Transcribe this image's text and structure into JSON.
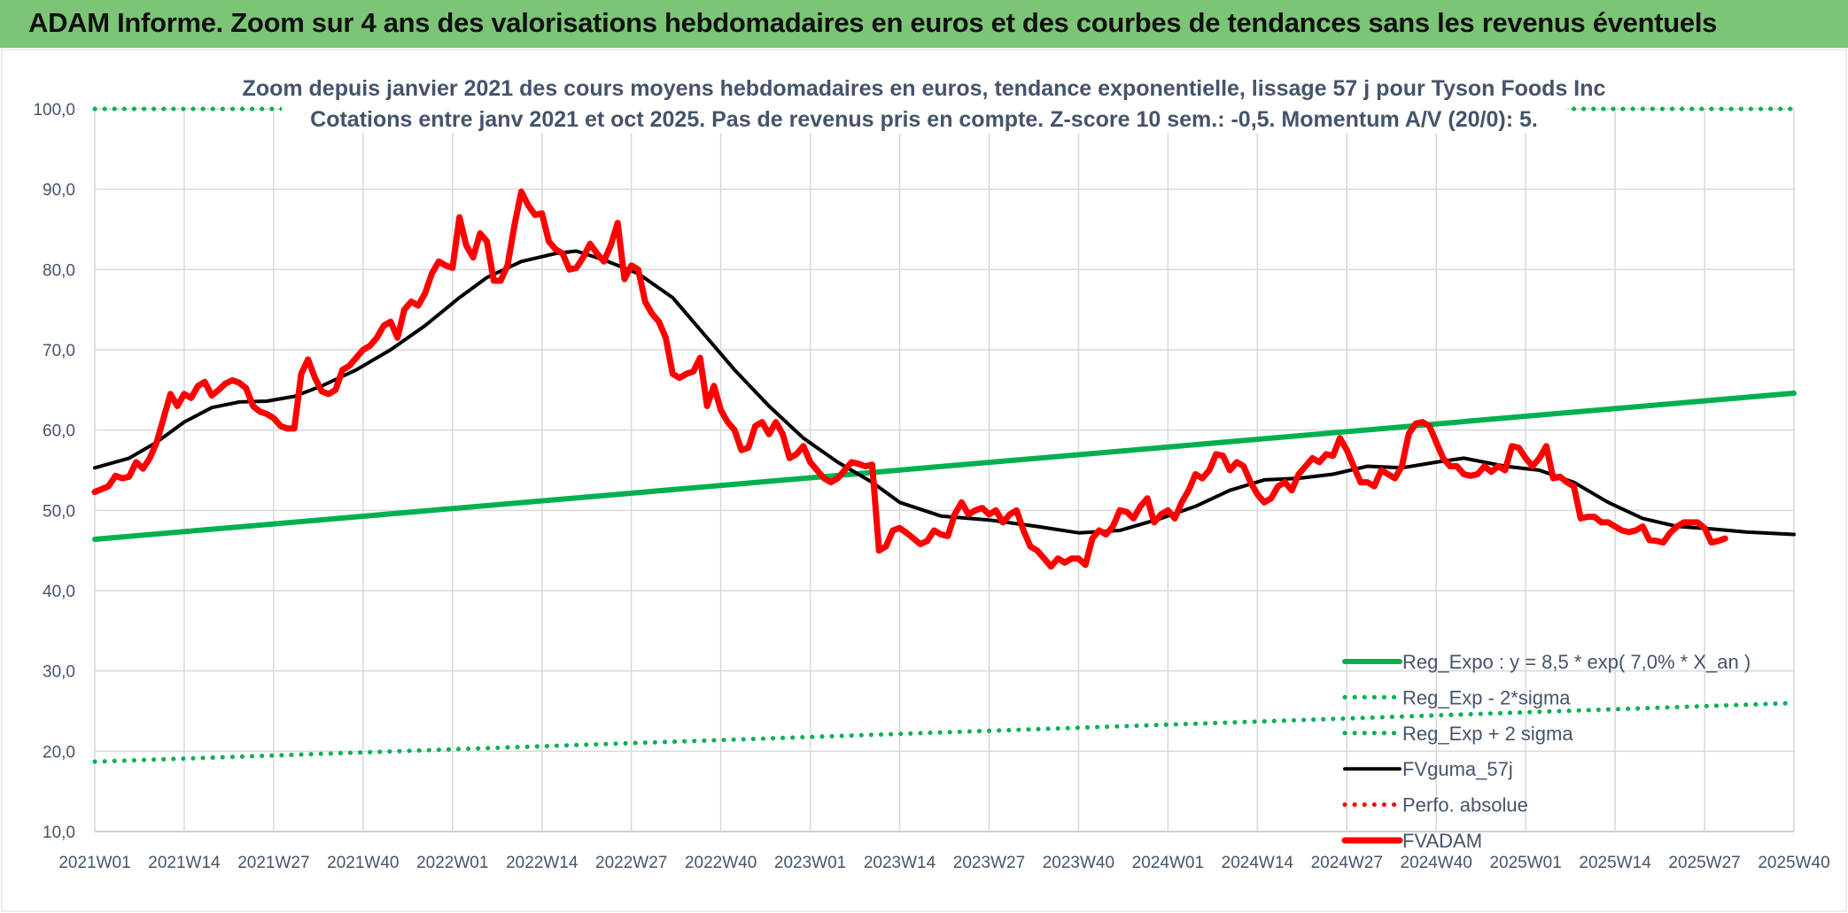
{
  "banner": {
    "title": "ADAM Informe. Zoom sur 4 ans des valorisations hebdomadaires en euros et des courbes de tendances sans les revenus éventuels"
  },
  "chart_data": {
    "type": "line",
    "title": "Zoom depuis janvier 2021 des cours moyens hebdomadaires en euros, tendance exponentielle, lissage 57 j pour Tyson Foods Inc",
    "subtitle": "Cotations entre janv 2021 et oct 2025. Pas de revenus pris en compte. Z-score 10 sem.: -0,5. Momentum A/V (20/0): 5.",
    "xlabel": "",
    "ylabel": "",
    "ylim": [
      10,
      100
    ],
    "yticks": [
      "10,0",
      "20,0",
      "30,0",
      "40,0",
      "50,0",
      "60,0",
      "70,0",
      "80,0",
      "90,0",
      "100,0"
    ],
    "xticks": [
      "2021W01",
      "2021W14",
      "2021W27",
      "2021W40",
      "2022W01",
      "2022W14",
      "2022W27",
      "2022W40",
      "2023W01",
      "2023W14",
      "2023W27",
      "2023W40",
      "2024W01",
      "2024W14",
      "2024W27",
      "2024W40",
      "2025W01",
      "2025W14",
      "2025W27",
      "2025W40"
    ],
    "grid": true,
    "legend_position": "bottom-right",
    "colors": {
      "green": "#00b050",
      "black": "#000000",
      "red": "#ff0000",
      "axis_text": "#44546a"
    },
    "series": [
      {
        "name": "Reg_Expo : y = 8,5 * exp( 7,0% *  X_an )",
        "style": "solid",
        "color": "#00b050",
        "key": "reg",
        "values": [
          [
            0,
            46.4
          ],
          [
            247,
            64.6
          ]
        ]
      },
      {
        "name": "Reg_Exp - 2*sigma",
        "style": "dotted",
        "color": "#00b050",
        "key": "low",
        "values": [
          [
            0,
            18.7
          ],
          [
            247,
            26.0
          ]
        ]
      },
      {
        "name": "Reg_Exp + 2 sigma",
        "style": "dotted",
        "color": "#00b050",
        "key": "high",
        "values": [
          [
            0,
            100.0
          ],
          [
            28,
            100.0
          ],
          [
            215,
            100.0
          ],
          [
            247,
            100.0
          ]
        ]
      },
      {
        "name": "FVguma_57j",
        "style": "solid",
        "color": "#000000",
        "key": "smooth",
        "values": [
          [
            0,
            55.3
          ],
          [
            5,
            56.5
          ],
          [
            9,
            58.5
          ],
          [
            13,
            61.0
          ],
          [
            17,
            62.8
          ],
          [
            21,
            63.5
          ],
          [
            25,
            63.6
          ],
          [
            29,
            64.2
          ],
          [
            33,
            65.5
          ],
          [
            38,
            67.5
          ],
          [
            43,
            70.0
          ],
          [
            48,
            73.0
          ],
          [
            53,
            76.5
          ],
          [
            57,
            79.0
          ],
          [
            62,
            81.0
          ],
          [
            67,
            82.0
          ],
          [
            70,
            82.3
          ],
          [
            74,
            81.2
          ],
          [
            79,
            79.5
          ],
          [
            84,
            76.5
          ],
          [
            88,
            72.5
          ],
          [
            93,
            67.5
          ],
          [
            98,
            63.0
          ],
          [
            103,
            59.0
          ],
          [
            108,
            56.0
          ],
          [
            113,
            53.5
          ],
          [
            117,
            51.0
          ],
          [
            123,
            49.3
          ],
          [
            130,
            48.8
          ],
          [
            137,
            48.0
          ],
          [
            143,
            47.2
          ],
          [
            149,
            47.5
          ],
          [
            155,
            49.0
          ],
          [
            160,
            50.5
          ],
          [
            165,
            52.5
          ],
          [
            170,
            53.8
          ],
          [
            175,
            54.0
          ],
          [
            180,
            54.5
          ],
          [
            185,
            55.5
          ],
          [
            190,
            55.3
          ],
          [
            195,
            56.0
          ],
          [
            199,
            56.5
          ],
          [
            205,
            55.5
          ],
          [
            210,
            55.0
          ],
          [
            215,
            53.5
          ],
          [
            220,
            51.0
          ],
          [
            225,
            49.0
          ],
          [
            230,
            48.0
          ],
          [
            235,
            47.7
          ],
          [
            240,
            47.3
          ],
          [
            247,
            47.0
          ]
        ]
      },
      {
        "name": "Perfo. absolue",
        "style": "dotted",
        "color": "#ff0000",
        "key": "perfo",
        "values": []
      },
      {
        "name": "FVADAM",
        "style": "solid",
        "color": "#ff0000",
        "key": "fvadam",
        "values": [
          [
            0,
            52.3
          ],
          [
            2,
            53.0
          ],
          [
            3,
            54.3
          ],
          [
            4,
            54.0
          ],
          [
            5,
            54.2
          ],
          [
            6,
            56.0
          ],
          [
            7,
            55.2
          ],
          [
            8,
            56.5
          ],
          [
            9,
            58.5
          ],
          [
            10,
            61.5
          ],
          [
            11,
            64.5
          ],
          [
            12,
            63.0
          ],
          [
            13,
            64.5
          ],
          [
            14,
            64.0
          ],
          [
            15,
            65.5
          ],
          [
            16,
            66.0
          ],
          [
            17,
            64.3
          ],
          [
            18,
            65.0
          ],
          [
            19,
            65.8
          ],
          [
            20,
            66.2
          ],
          [
            21,
            65.9
          ],
          [
            22,
            65.2
          ],
          [
            23,
            63.0
          ],
          [
            24,
            62.3
          ],
          [
            25,
            62.0
          ],
          [
            26,
            61.5
          ],
          [
            27,
            60.5
          ],
          [
            28,
            60.2
          ],
          [
            29,
            60.2
          ],
          [
            30,
            67.0
          ],
          [
            31,
            68.8
          ],
          [
            32,
            66.5
          ],
          [
            33,
            64.8
          ],
          [
            34,
            64.5
          ],
          [
            35,
            65.0
          ],
          [
            36,
            67.5
          ],
          [
            37,
            68.0
          ],
          [
            38,
            69.0
          ],
          [
            39,
            70.0
          ],
          [
            40,
            70.5
          ],
          [
            41,
            71.5
          ],
          [
            42,
            73.0
          ],
          [
            43,
            73.5
          ],
          [
            44,
            71.5
          ],
          [
            45,
            75.0
          ],
          [
            46,
            76.0
          ],
          [
            47,
            75.5
          ],
          [
            48,
            77.0
          ],
          [
            49,
            79.5
          ],
          [
            50,
            81.0
          ],
          [
            51,
            80.5
          ],
          [
            52,
            80.2
          ],
          [
            53,
            86.5
          ],
          [
            54,
            83.0
          ],
          [
            55,
            81.5
          ],
          [
            56,
            84.5
          ],
          [
            57,
            83.5
          ],
          [
            58,
            78.6
          ],
          [
            59,
            78.6
          ],
          [
            60,
            80.5
          ],
          [
            61,
            85.5
          ],
          [
            62,
            89.7
          ],
          [
            63,
            88.0
          ],
          [
            64,
            86.8
          ],
          [
            65,
            87.0
          ],
          [
            66,
            83.5
          ],
          [
            67,
            82.5
          ],
          [
            68,
            82.0
          ],
          [
            69,
            80.0
          ],
          [
            70,
            80.2
          ],
          [
            71,
            81.5
          ],
          [
            72,
            83.2
          ],
          [
            73,
            82.0
          ],
          [
            74,
            81.0
          ],
          [
            75,
            83.0
          ],
          [
            76,
            85.8
          ],
          [
            77,
            78.8
          ],
          [
            78,
            80.5
          ],
          [
            79,
            80.0
          ],
          [
            80,
            76.0
          ],
          [
            81,
            74.5
          ],
          [
            82,
            73.5
          ],
          [
            83,
            71.5
          ],
          [
            84,
            67.0
          ],
          [
            85,
            66.5
          ],
          [
            86,
            67.0
          ],
          [
            87,
            67.3
          ],
          [
            88,
            69.0
          ],
          [
            89,
            63.0
          ],
          [
            90,
            65.5
          ],
          [
            91,
            62.5
          ],
          [
            92,
            61.0
          ],
          [
            93,
            60.0
          ],
          [
            94,
            57.5
          ],
          [
            95,
            57.8
          ],
          [
            96,
            60.5
          ],
          [
            97,
            61.0
          ],
          [
            98,
            59.5
          ],
          [
            99,
            61.0
          ],
          [
            100,
            59.5
          ],
          [
            101,
            56.5
          ],
          [
            102,
            57.0
          ],
          [
            103,
            58.0
          ],
          [
            104,
            56.0
          ],
          [
            105,
            55.0
          ],
          [
            106,
            54.0
          ],
          [
            107,
            53.5
          ],
          [
            108,
            54.0
          ],
          [
            109,
            55.0
          ],
          [
            110,
            56.0
          ],
          [
            111,
            55.8
          ],
          [
            112,
            55.5
          ],
          [
            113,
            55.7
          ],
          [
            114,
            45.0
          ],
          [
            115,
            45.5
          ],
          [
            116,
            47.5
          ],
          [
            117,
            47.8
          ],
          [
            118,
            47.2
          ],
          [
            119,
            46.5
          ],
          [
            120,
            45.8
          ],
          [
            121,
            46.2
          ],
          [
            122,
            47.5
          ],
          [
            123,
            47.0
          ],
          [
            124,
            46.8
          ],
          [
            125,
            49.5
          ],
          [
            126,
            51.0
          ],
          [
            127,
            49.5
          ],
          [
            128,
            50.0
          ],
          [
            129,
            50.3
          ],
          [
            130,
            49.5
          ],
          [
            131,
            50.0
          ],
          [
            132,
            48.5
          ],
          [
            133,
            49.5
          ],
          [
            134,
            50.0
          ],
          [
            135,
            47.5
          ],
          [
            136,
            45.5
          ],
          [
            137,
            45.0
          ],
          [
            138,
            44.0
          ],
          [
            139,
            43.0
          ],
          [
            140,
            44.0
          ],
          [
            141,
            43.5
          ],
          [
            142,
            44.0
          ],
          [
            143,
            44.0
          ],
          [
            144,
            43.2
          ],
          [
            145,
            46.5
          ],
          [
            146,
            47.5
          ],
          [
            147,
            47.0
          ],
          [
            148,
            48.0
          ],
          [
            149,
            50.0
          ],
          [
            150,
            49.8
          ],
          [
            151,
            49.0
          ],
          [
            152,
            50.5
          ],
          [
            153,
            51.5
          ],
          [
            154,
            48.5
          ],
          [
            155,
            49.5
          ],
          [
            156,
            50.0
          ],
          [
            157,
            49.0
          ],
          [
            158,
            51.0
          ],
          [
            159,
            52.5
          ],
          [
            160,
            54.5
          ],
          [
            161,
            54.0
          ],
          [
            162,
            55.0
          ],
          [
            163,
            57.0
          ],
          [
            164,
            56.8
          ],
          [
            165,
            55.0
          ],
          [
            166,
            56.0
          ],
          [
            167,
            55.5
          ],
          [
            168,
            53.5
          ],
          [
            169,
            52.0
          ],
          [
            170,
            51.0
          ],
          [
            171,
            51.5
          ],
          [
            172,
            53.0
          ],
          [
            173,
            53.5
          ],
          [
            174,
            52.5
          ],
          [
            175,
            54.5
          ],
          [
            176,
            55.5
          ],
          [
            177,
            56.5
          ],
          [
            178,
            56.0
          ],
          [
            179,
            57.0
          ],
          [
            180,
            56.8
          ],
          [
            181,
            59.0
          ],
          [
            182,
            57.5
          ],
          [
            183,
            55.5
          ],
          [
            184,
            53.5
          ],
          [
            185,
            53.5
          ],
          [
            186,
            53.0
          ],
          [
            187,
            55.0
          ],
          [
            188,
            54.5
          ],
          [
            189,
            54.0
          ],
          [
            190,
            55.5
          ],
          [
            191,
            59.5
          ],
          [
            192,
            60.8
          ],
          [
            193,
            61.0
          ],
          [
            194,
            60.5
          ],
          [
            195,
            58.5
          ],
          [
            196,
            56.5
          ],
          [
            197,
            55.5
          ],
          [
            198,
            55.5
          ],
          [
            199,
            54.5
          ],
          [
            200,
            54.3
          ],
          [
            201,
            54.5
          ],
          [
            202,
            55.5
          ],
          [
            203,
            54.8
          ],
          [
            204,
            55.5
          ],
          [
            205,
            55.0
          ],
          [
            206,
            58.0
          ],
          [
            207,
            57.8
          ],
          [
            208,
            56.5
          ],
          [
            209,
            55.5
          ],
          [
            210,
            56.5
          ],
          [
            211,
            58.0
          ],
          [
            212,
            54.0
          ],
          [
            213,
            54.2
          ],
          [
            214,
            53.5
          ],
          [
            215,
            53.0
          ],
          [
            216,
            49.0
          ],
          [
            217,
            49.2
          ],
          [
            218,
            49.2
          ],
          [
            219,
            48.5
          ],
          [
            220,
            48.5
          ],
          [
            221,
            48.0
          ],
          [
            222,
            47.5
          ],
          [
            223,
            47.3
          ],
          [
            224,
            47.5
          ],
          [
            225,
            48.0
          ],
          [
            226,
            46.3
          ],
          [
            227,
            46.2
          ],
          [
            228,
            46.0
          ],
          [
            229,
            47.2
          ],
          [
            230,
            48.0
          ],
          [
            231,
            48.5
          ],
          [
            232,
            48.5
          ],
          [
            233,
            48.5
          ],
          [
            234,
            47.8
          ],
          [
            235,
            46.0
          ],
          [
            236,
            46.2
          ],
          [
            237,
            46.5
          ]
        ]
      }
    ]
  }
}
